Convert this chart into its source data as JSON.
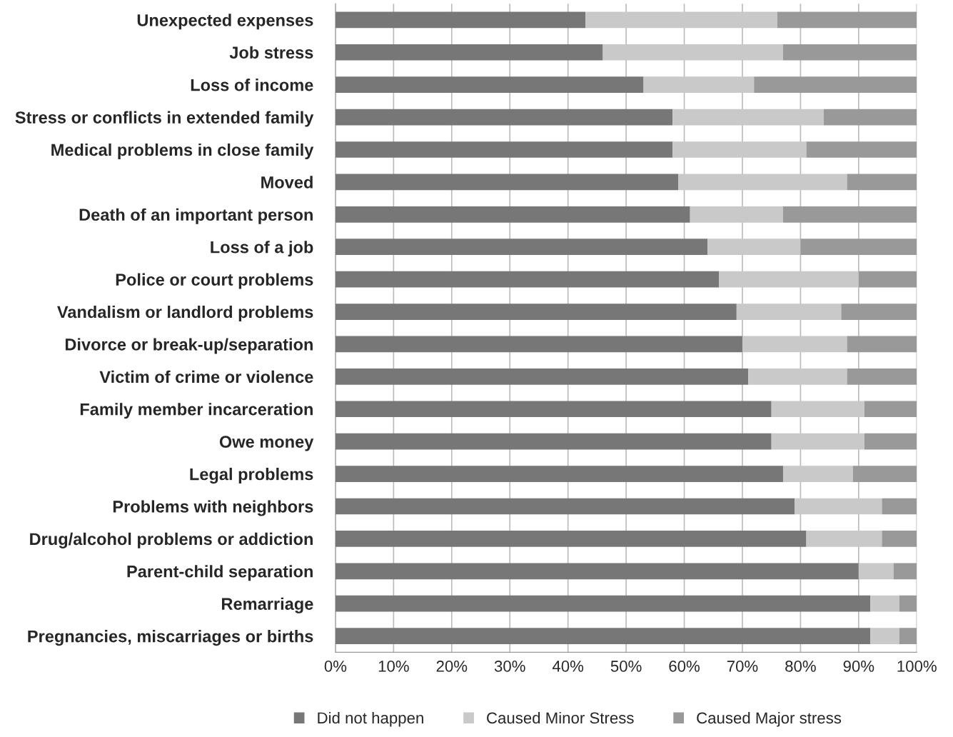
{
  "chart_data": {
    "type": "bar",
    "orientation": "horizontal",
    "stacked": true,
    "categories": [
      "Unexpected expenses",
      "Job stress",
      "Loss of income",
      "Stress or conflicts in extended family",
      "Medical problems in close family",
      "Moved",
      "Death of an important person",
      "Loss of a job",
      "Police or court problems",
      "Vandalism or landlord problems",
      "Divorce or break-up/separation",
      "Victim of crime or violence",
      "Family member incarceration",
      "Owe money",
      "Legal problems",
      "Problems with neighbors",
      "Drug/alcohol problems or addiction",
      "Parent-child separation",
      "Remarriage",
      "Pregnancies, miscarriages or births"
    ],
    "series": [
      {
        "name": "Did not happen",
        "color": "#777777",
        "values": [
          43,
          46,
          53,
          58,
          58,
          59,
          61,
          64,
          66,
          69,
          70,
          71,
          75,
          75,
          77,
          79,
          81,
          90,
          92,
          92
        ]
      },
      {
        "name": "Caused Minor Stress",
        "color": "#c9c9c9",
        "values": [
          33,
          31,
          19,
          26,
          23,
          29,
          16,
          16,
          24,
          18,
          18,
          17,
          16,
          16,
          12,
          15,
          13,
          6,
          5,
          5
        ]
      },
      {
        "name": "Caused Major stress",
        "color": "#999999",
        "values": [
          24,
          23,
          28,
          16,
          19,
          12,
          23,
          20,
          10,
          13,
          12,
          12,
          9,
          9,
          11,
          6,
          6,
          4,
          3,
          3
        ]
      }
    ],
    "xlim": [
      0,
      100
    ],
    "xticks": [
      {
        "value": 0,
        "label": "0%"
      },
      {
        "value": 10,
        "label": "10%"
      },
      {
        "value": 20,
        "label": "20%"
      },
      {
        "value": 30,
        "label": "30%"
      },
      {
        "value": 40,
        "label": "40%"
      },
      {
        "value": 50,
        "label": "50%"
      },
      {
        "value": 60,
        "label": "60%"
      },
      {
        "value": 70,
        "label": "70%"
      },
      {
        "value": 80,
        "label": "80%"
      },
      {
        "value": 90,
        "label": "90%"
      },
      {
        "value": 100,
        "label": "100%"
      }
    ],
    "grid": "x",
    "legend": "bottom"
  }
}
